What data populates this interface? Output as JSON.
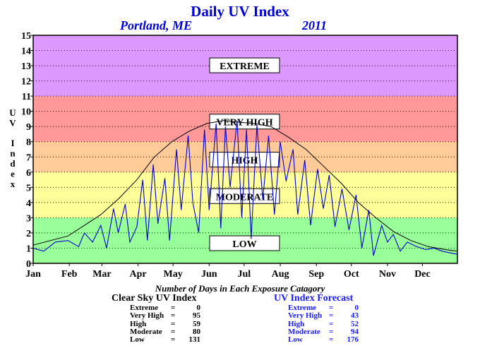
{
  "title": "Daily UV Index",
  "location": "Portland, ME",
  "year": "2011",
  "counts_heading": "Number of Days in Each Exposure Catagory",
  "clear_sky": {
    "title": "Clear Sky UV Index",
    "rows": [
      {
        "label": "Extreme",
        "value": "0"
      },
      {
        "label": "Very High",
        "value": "95"
      },
      {
        "label": "High",
        "value": "59"
      },
      {
        "label": "Moderate",
        "value": "80"
      },
      {
        "label": "Low",
        "value": "131"
      }
    ]
  },
  "forecast": {
    "title": "UV Index Forecast",
    "rows": [
      {
        "label": "Extreme",
        "value": "0"
      },
      {
        "label": "Very High",
        "value": "43"
      },
      {
        "label": "High",
        "value": "52"
      },
      {
        "label": "Moderate",
        "value": "94"
      },
      {
        "label": "Low",
        "value": "176"
      }
    ]
  },
  "chart_data": {
    "type": "line",
    "title": "Daily UV Index",
    "ylabel": "UV Index",
    "xlabel": "",
    "ylim": [
      0,
      15
    ],
    "yticks": [
      0,
      1,
      2,
      3,
      4,
      5,
      6,
      7,
      8,
      9,
      10,
      11,
      12,
      13,
      14,
      15
    ],
    "months": [
      "Jan",
      "Feb",
      "Mar",
      "Apr",
      "May",
      "Jun",
      "Jul",
      "Aug",
      "Sep",
      "Oct",
      "Nov",
      "Dec"
    ],
    "days_in_year": 365,
    "grid": "dotted horizontal",
    "bands": [
      {
        "label": "LOW",
        "from": 0,
        "to": 3,
        "color": "#99ff99",
        "label_y": 1.3
      },
      {
        "label": "MODERATE",
        "from": 3,
        "to": 6,
        "color": "#ffff99",
        "label_y": 4.4
      },
      {
        "label": "HIGH",
        "from": 6,
        "to": 8,
        "color": "#ffcc99",
        "label_y": 6.8
      },
      {
        "label": "VERY HIGH",
        "from": 8,
        "to": 11,
        "color": "#ff9999",
        "label_y": 9.3
      },
      {
        "label": "EXTREME",
        "from": 11,
        "to": 15,
        "color": "#dd99ff",
        "label_y": 13.0
      }
    ],
    "series": [
      {
        "name": "Clear Sky UV Index",
        "color": "#000000",
        "points": [
          [
            1,
            1.2
          ],
          [
            31,
            1.8
          ],
          [
            59,
            3.2
          ],
          [
            75,
            4.3
          ],
          [
            90,
            5.5
          ],
          [
            105,
            7.0
          ],
          [
            120,
            8.0
          ],
          [
            135,
            8.7
          ],
          [
            150,
            9.2
          ],
          [
            165,
            9.4
          ],
          [
            175,
            9.3
          ],
          [
            190,
            9.2
          ],
          [
            205,
            9.0
          ],
          [
            220,
            8.3
          ],
          [
            235,
            7.5
          ],
          [
            250,
            6.4
          ],
          [
            265,
            5.3
          ],
          [
            280,
            4.0
          ],
          [
            295,
            3.0
          ],
          [
            310,
            2.1
          ],
          [
            325,
            1.5
          ],
          [
            340,
            1.1
          ],
          [
            355,
            0.9
          ],
          [
            365,
            0.8
          ]
        ]
      },
      {
        "name": "UV Index Forecast",
        "color": "#0000cc",
        "points": [
          [
            1,
            1.0
          ],
          [
            10,
            0.8
          ],
          [
            20,
            1.4
          ],
          [
            31,
            1.5
          ],
          [
            40,
            1.1
          ],
          [
            45,
            2.0
          ],
          [
            52,
            1.4
          ],
          [
            59,
            2.5
          ],
          [
            64,
            1.0
          ],
          [
            70,
            3.6
          ],
          [
            74,
            2.0
          ],
          [
            80,
            3.9
          ],
          [
            84,
            1.4
          ],
          [
            90,
            2.4
          ],
          [
            95,
            5.5
          ],
          [
            99,
            1.5
          ],
          [
            104,
            6.5
          ],
          [
            108,
            2.6
          ],
          [
            114,
            5.6
          ],
          [
            118,
            1.5
          ],
          [
            124,
            7.5
          ],
          [
            128,
            3.5
          ],
          [
            134,
            8.4
          ],
          [
            138,
            4.0
          ],
          [
            143,
            2.0
          ],
          [
            148,
            8.8
          ],
          [
            152,
            3.5
          ],
          [
            158,
            9.2
          ],
          [
            162,
            2.3
          ],
          [
            166,
            9.0
          ],
          [
            170,
            5.0
          ],
          [
            176,
            9.4
          ],
          [
            180,
            3.0
          ],
          [
            184,
            8.8
          ],
          [
            188,
            1.6
          ],
          [
            193,
            9.1
          ],
          [
            198,
            4.2
          ],
          [
            203,
            8.4
          ],
          [
            208,
            3.2
          ],
          [
            213,
            8.0
          ],
          [
            218,
            5.4
          ],
          [
            224,
            7.5
          ],
          [
            228,
            3.2
          ],
          [
            234,
            6.8
          ],
          [
            239,
            2.5
          ],
          [
            245,
            6.2
          ],
          [
            250,
            3.6
          ],
          [
            255,
            5.8
          ],
          [
            260,
            2.4
          ],
          [
            266,
            4.9
          ],
          [
            272,
            2.2
          ],
          [
            278,
            4.5
          ],
          [
            283,
            1.0
          ],
          [
            289,
            3.5
          ],
          [
            293,
            0.5
          ],
          [
            300,
            2.5
          ],
          [
            305,
            1.4
          ],
          [
            310,
            1.9
          ],
          [
            316,
            0.8
          ],
          [
            322,
            1.4
          ],
          [
            330,
            1.1
          ],
          [
            338,
            0.9
          ],
          [
            345,
            1.0
          ],
          [
            352,
            0.8
          ],
          [
            358,
            0.7
          ],
          [
            365,
            0.6
          ]
        ]
      }
    ]
  }
}
